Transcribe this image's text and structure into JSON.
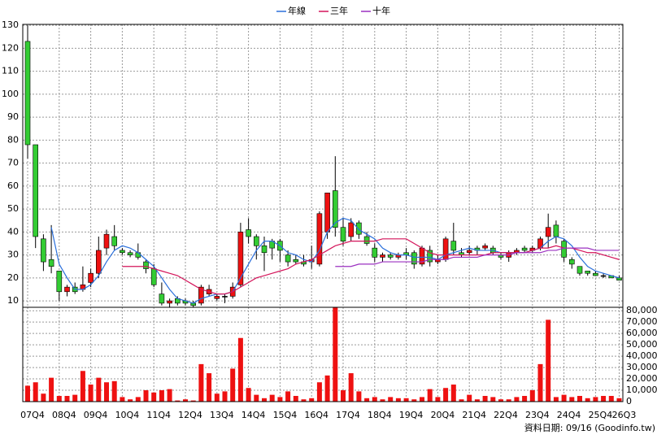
{
  "chart_data": [
    {
      "type": "candlestick",
      "categories": [
        "07Q4",
        null,
        null,
        null,
        "08Q4",
        null,
        null,
        null,
        "09Q4",
        null,
        null,
        null,
        "10Q4",
        null,
        null,
        null,
        "11Q4",
        null,
        null,
        null,
        "12Q4",
        null,
        null,
        null,
        "13Q4",
        null,
        null,
        null,
        "14Q4",
        null,
        null,
        null,
        "15Q4",
        null,
        null,
        null,
        "16Q4",
        null,
        null,
        null,
        "17Q4",
        null,
        null,
        null,
        "18Q4",
        null,
        null,
        null,
        "19Q4",
        null,
        null,
        null,
        "20Q4",
        null,
        null,
        null,
        "21Q4",
        null,
        null,
        null,
        "22Q4",
        null,
        null,
        null,
        "23Q4",
        null,
        null,
        null,
        "24Q4",
        null,
        null,
        null,
        "25Q4",
        null,
        null,
        "26Q3"
      ],
      "open": [
        123,
        78,
        37,
        28,
        23,
        14,
        16,
        15,
        18,
        22,
        33,
        38,
        32,
        31,
        31,
        27,
        24,
        13,
        9,
        11,
        10,
        9,
        9,
        13,
        11,
        12,
        12,
        17,
        41,
        38,
        34,
        36,
        36,
        30,
        28,
        27,
        27,
        26,
        40,
        58,
        42,
        38,
        44,
        38,
        33,
        29,
        30,
        29,
        31,
        31,
        26,
        32,
        27,
        28,
        36,
        31,
        31,
        33,
        33,
        33,
        30,
        29,
        31,
        33,
        32,
        33,
        38,
        43,
        36,
        28,
        25,
        23,
        22,
        21,
        21,
        20
      ],
      "high": [
        130,
        78,
        39,
        43,
        23,
        17,
        18,
        25,
        24,
        38,
        41,
        43,
        33,
        32,
        35,
        28,
        26,
        18,
        11,
        12,
        11,
        10,
        17,
        17,
        13,
        13,
        18,
        44,
        46,
        39,
        38,
        37,
        37,
        32,
        30,
        30,
        34,
        49,
        57,
        73,
        46,
        46,
        45,
        40,
        35,
        31,
        31,
        31,
        33,
        32,
        34,
        34,
        30,
        38,
        44,
        33,
        34,
        34,
        35,
        34,
        31,
        32,
        33,
        34,
        34,
        38,
        48,
        45,
        37,
        29,
        25,
        23,
        23,
        22,
        21,
        21
      ],
      "low": [
        72,
        33,
        23,
        22,
        10,
        12,
        13,
        14,
        16,
        20,
        30,
        32,
        30,
        29,
        28,
        22,
        16,
        8,
        7,
        8,
        8,
        7,
        8,
        12,
        10,
        9,
        11,
        16,
        35,
        28,
        23,
        28,
        27,
        25,
        26,
        25,
        24,
        25,
        37,
        38,
        34,
        36,
        37,
        34,
        27,
        27,
        28,
        28,
        28,
        24,
        25,
        25,
        26,
        27,
        30,
        29,
        30,
        30,
        32,
        30,
        28,
        27,
        30,
        31,
        31,
        32,
        33,
        35,
        27,
        24,
        21,
        21,
        21,
        20,
        20,
        19
      ],
      "close": [
        78,
        38,
        27,
        25,
        14,
        16,
        14,
        17,
        22,
        32,
        39,
        34,
        31,
        30,
        29,
        24,
        17,
        9,
        10,
        9,
        9,
        8,
        16,
        15,
        12,
        12,
        16,
        40,
        38,
        34,
        31,
        33,
        32,
        27,
        27,
        26,
        28,
        48,
        57,
        42,
        36,
        44,
        39,
        35,
        29,
        30,
        29,
        30,
        30,
        26,
        33,
        27,
        28,
        37,
        32,
        30,
        32,
        32,
        34,
        31,
        29,
        31,
        32,
        32,
        33,
        37,
        42,
        38,
        29,
        26,
        22,
        22,
        21,
        21,
        20,
        19
      ],
      "up_color": "#ee1111",
      "down_color": "#33cc33",
      "series": [
        {
          "name": "年線",
          "color": "#2a6fdb",
          "values": [
            null,
            null,
            null,
            42,
            26,
            20,
            15,
            15,
            17,
            21,
            27,
            32,
            34,
            33,
            31,
            28,
            25,
            20,
            15,
            11,
            10,
            9,
            11,
            12,
            13,
            13,
            14,
            20,
            26,
            32,
            36,
            36,
            34,
            31,
            30,
            28,
            27,
            32,
            40,
            44,
            46,
            45,
            41,
            39,
            37,
            33,
            31,
            30,
            30,
            29,
            29,
            29,
            28,
            30,
            31,
            32,
            33,
            32,
            32,
            32,
            31,
            31,
            31,
            31,
            32,
            33,
            36,
            38,
            37,
            34,
            29,
            25,
            23,
            22,
            21,
            20
          ]
        },
        {
          "name": "三年",
          "color": "#d4145a",
          "values": [
            null,
            null,
            null,
            null,
            null,
            null,
            null,
            null,
            null,
            null,
            null,
            null,
            25,
            25,
            25,
            25,
            24,
            23,
            22,
            21,
            19,
            17,
            15,
            14,
            13,
            13,
            14,
            16,
            18,
            20,
            21,
            22,
            23,
            24,
            26,
            27,
            28,
            30,
            32,
            34,
            35,
            36,
            36,
            36,
            36,
            37,
            37,
            37,
            37,
            35,
            33,
            31,
            30,
            30,
            30,
            30,
            30,
            30,
            30,
            31,
            31,
            31,
            31,
            31,
            32,
            33,
            33,
            34,
            33,
            33,
            32,
            31,
            31,
            30,
            29,
            28
          ]
        },
        {
          "name": "十年",
          "color": "#9b30c0",
          "values": [
            null,
            null,
            null,
            null,
            null,
            null,
            null,
            null,
            null,
            null,
            null,
            null,
            null,
            null,
            null,
            null,
            null,
            null,
            null,
            null,
            null,
            null,
            null,
            null,
            null,
            null,
            null,
            null,
            null,
            null,
            null,
            null,
            null,
            null,
            null,
            null,
            null,
            null,
            null,
            25,
            25,
            25,
            26,
            26,
            26,
            27,
            27,
            27,
            27,
            27,
            27,
            28,
            28,
            28,
            29,
            29,
            29,
            29,
            30,
            30,
            30,
            30,
            31,
            31,
            31,
            31,
            32,
            32,
            33,
            33,
            33,
            33,
            32,
            32,
            32,
            32
          ]
        }
      ],
      "ylim": [
        7.2,
        130.4
      ],
      "yticks": [
        10,
        20,
        30,
        40,
        50,
        60,
        70,
        80,
        90,
        100,
        110,
        120,
        130
      ],
      "grid": true,
      "legend": "top"
    },
    {
      "type": "bar",
      "values": [
        14000,
        17000,
        7000,
        21000,
        5000,
        5000,
        6000,
        27000,
        15000,
        21000,
        17000,
        18000,
        4000,
        2000,
        4000,
        10000,
        8000,
        10000,
        11000,
        1000,
        2000,
        1000,
        33000,
        25000,
        7000,
        9000,
        29000,
        56000,
        12000,
        6000,
        3000,
        6000,
        4000,
        9000,
        5000,
        2000,
        3000,
        17000,
        23000,
        83000,
        10000,
        25000,
        9000,
        3000,
        4000,
        2000,
        4000,
        3000,
        3000,
        2000,
        4000,
        11000,
        4000,
        12000,
        15000,
        2000,
        6000,
        2000,
        5000,
        4000,
        2000,
        2000,
        4000,
        5000,
        10000,
        33000,
        72000,
        4000,
        6000,
        4000,
        5000,
        3000,
        4000,
        5000,
        5000,
        3000
      ],
      "color": "#ee1111",
      "ylim": [
        0,
        83000
      ],
      "yticks": [
        0,
        {
          "value": 10000,
          "label": "10,000"
        },
        {
          "value": 20000,
          "label": "20,000"
        },
        {
          "value": 30000,
          "label": "30,000"
        },
        {
          "value": 40000,
          "label": "40,000"
        },
        {
          "value": 50000,
          "label": "50,000"
        },
        {
          "value": 60000,
          "label": "60,000"
        },
        {
          "value": 70000,
          "label": "70,000"
        },
        {
          "value": 80000,
          "label": "80,000"
        }
      ],
      "grid": true
    }
  ],
  "footer": "資料日期: 09/16 (Goodinfo.tw)"
}
